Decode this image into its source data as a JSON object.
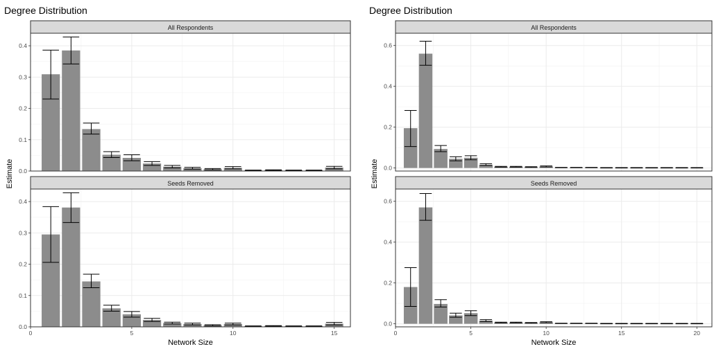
{
  "chart_data": [
    {
      "type": "bar",
      "title": "Degree Distribution",
      "xlabel": "Network Size",
      "ylabel": "Estimate",
      "xlim": [
        0,
        15.8
      ],
      "xticks": [
        0,
        5,
        10,
        15
      ],
      "grid": true,
      "panels": [
        {
          "label": "All Respondents",
          "ylim": [
            0,
            0.44
          ],
          "yticks": [
            0.0,
            0.1,
            0.2,
            0.3,
            0.4
          ],
          "x": [
            1,
            2,
            3,
            4,
            5,
            6,
            7,
            8,
            9,
            10,
            11,
            12,
            13,
            14,
            15
          ],
          "values": [
            0.309,
            0.385,
            0.134,
            0.052,
            0.042,
            0.024,
            0.014,
            0.009,
            0.006,
            0.01,
            0.002,
            0.003,
            0.002,
            0.002,
            0.011
          ],
          "lower": [
            0.23,
            0.342,
            0.118,
            0.043,
            0.033,
            0.018,
            0.01,
            0.006,
            0.004,
            0.007,
            0.001,
            0.002,
            0.001,
            0.001,
            0.007
          ],
          "upper": [
            0.386,
            0.428,
            0.153,
            0.062,
            0.052,
            0.03,
            0.018,
            0.012,
            0.008,
            0.014,
            0.003,
            0.004,
            0.003,
            0.003,
            0.015
          ]
        },
        {
          "label": "Seeds Removed",
          "ylim": [
            0,
            0.44
          ],
          "yticks": [
            0.0,
            0.1,
            0.2,
            0.3,
            0.4
          ],
          "x": [
            1,
            2,
            3,
            4,
            5,
            6,
            7,
            8,
            9,
            10,
            11,
            12,
            13,
            14,
            15
          ],
          "values": [
            0.295,
            0.381,
            0.145,
            0.059,
            0.04,
            0.022,
            0.012,
            0.009,
            0.005,
            0.009,
            0.002,
            0.003,
            0.002,
            0.002,
            0.01
          ],
          "lower": [
            0.206,
            0.333,
            0.125,
            0.05,
            0.031,
            0.017,
            0.009,
            0.006,
            0.003,
            0.006,
            0.001,
            0.002,
            0.001,
            0.001,
            0.006
          ],
          "upper": [
            0.384,
            0.428,
            0.168,
            0.069,
            0.049,
            0.027,
            0.015,
            0.012,
            0.007,
            0.012,
            0.003,
            0.004,
            0.003,
            0.003,
            0.014
          ]
        }
      ]
    },
    {
      "type": "bar",
      "title": "Degree Distribution",
      "xlabel": "Network Size",
      "ylabel": "Estimate",
      "xlim": [
        0,
        21
      ],
      "xticks": [
        0,
        5,
        10,
        15,
        20
      ],
      "grid": true,
      "panels": [
        {
          "label": "All Respondents",
          "ylim": [
            -0.015,
            0.66
          ],
          "yticks": [
            0.0,
            0.2,
            0.4,
            0.6
          ],
          "x": [
            1,
            2,
            3,
            4,
            5,
            6,
            7,
            8,
            9,
            10,
            11,
            12,
            13,
            14,
            15,
            16,
            17,
            18,
            19,
            20
          ],
          "values": [
            0.195,
            0.56,
            0.093,
            0.045,
            0.05,
            0.016,
            0.006,
            0.006,
            0.004,
            0.007,
            0.002,
            0.002,
            0.002,
            0.001,
            0.001,
            0.001,
            0.001,
            0.001,
            0.001,
            0.001
          ],
          "lower": [
            0.105,
            0.503,
            0.08,
            0.035,
            0.04,
            0.012,
            0.004,
            0.004,
            0.003,
            0.005,
            0.001,
            0.001,
            0.001,
            0.0,
            0.0,
            0.0,
            0.0,
            0.0,
            0.0,
            0.0
          ],
          "upper": [
            0.282,
            0.621,
            0.11,
            0.055,
            0.06,
            0.021,
            0.008,
            0.008,
            0.006,
            0.01,
            0.003,
            0.003,
            0.003,
            0.002,
            0.002,
            0.002,
            0.002,
            0.002,
            0.002,
            0.002
          ]
        },
        {
          "label": "Seeds Removed",
          "ylim": [
            -0.015,
            0.66
          ],
          "yticks": [
            0.0,
            0.2,
            0.4,
            0.6
          ],
          "x": [
            1,
            2,
            3,
            4,
            5,
            6,
            7,
            8,
            9,
            10,
            11,
            12,
            13,
            14,
            15,
            16,
            17,
            18,
            19,
            20
          ],
          "values": [
            0.18,
            0.57,
            0.097,
            0.041,
            0.052,
            0.015,
            0.006,
            0.006,
            0.004,
            0.007,
            0.002,
            0.002,
            0.002,
            0.001,
            0.001,
            0.001,
            0.001,
            0.001,
            0.001,
            0.001
          ],
          "lower": [
            0.085,
            0.507,
            0.082,
            0.032,
            0.04,
            0.011,
            0.004,
            0.004,
            0.003,
            0.005,
            0.001,
            0.001,
            0.001,
            0.0,
            0.0,
            0.0,
            0.0,
            0.0,
            0.0,
            0.0
          ],
          "upper": [
            0.275,
            0.638,
            0.118,
            0.052,
            0.064,
            0.02,
            0.008,
            0.008,
            0.006,
            0.01,
            0.003,
            0.003,
            0.003,
            0.002,
            0.002,
            0.002,
            0.002,
            0.002,
            0.002,
            0.002
          ]
        }
      ]
    }
  ]
}
